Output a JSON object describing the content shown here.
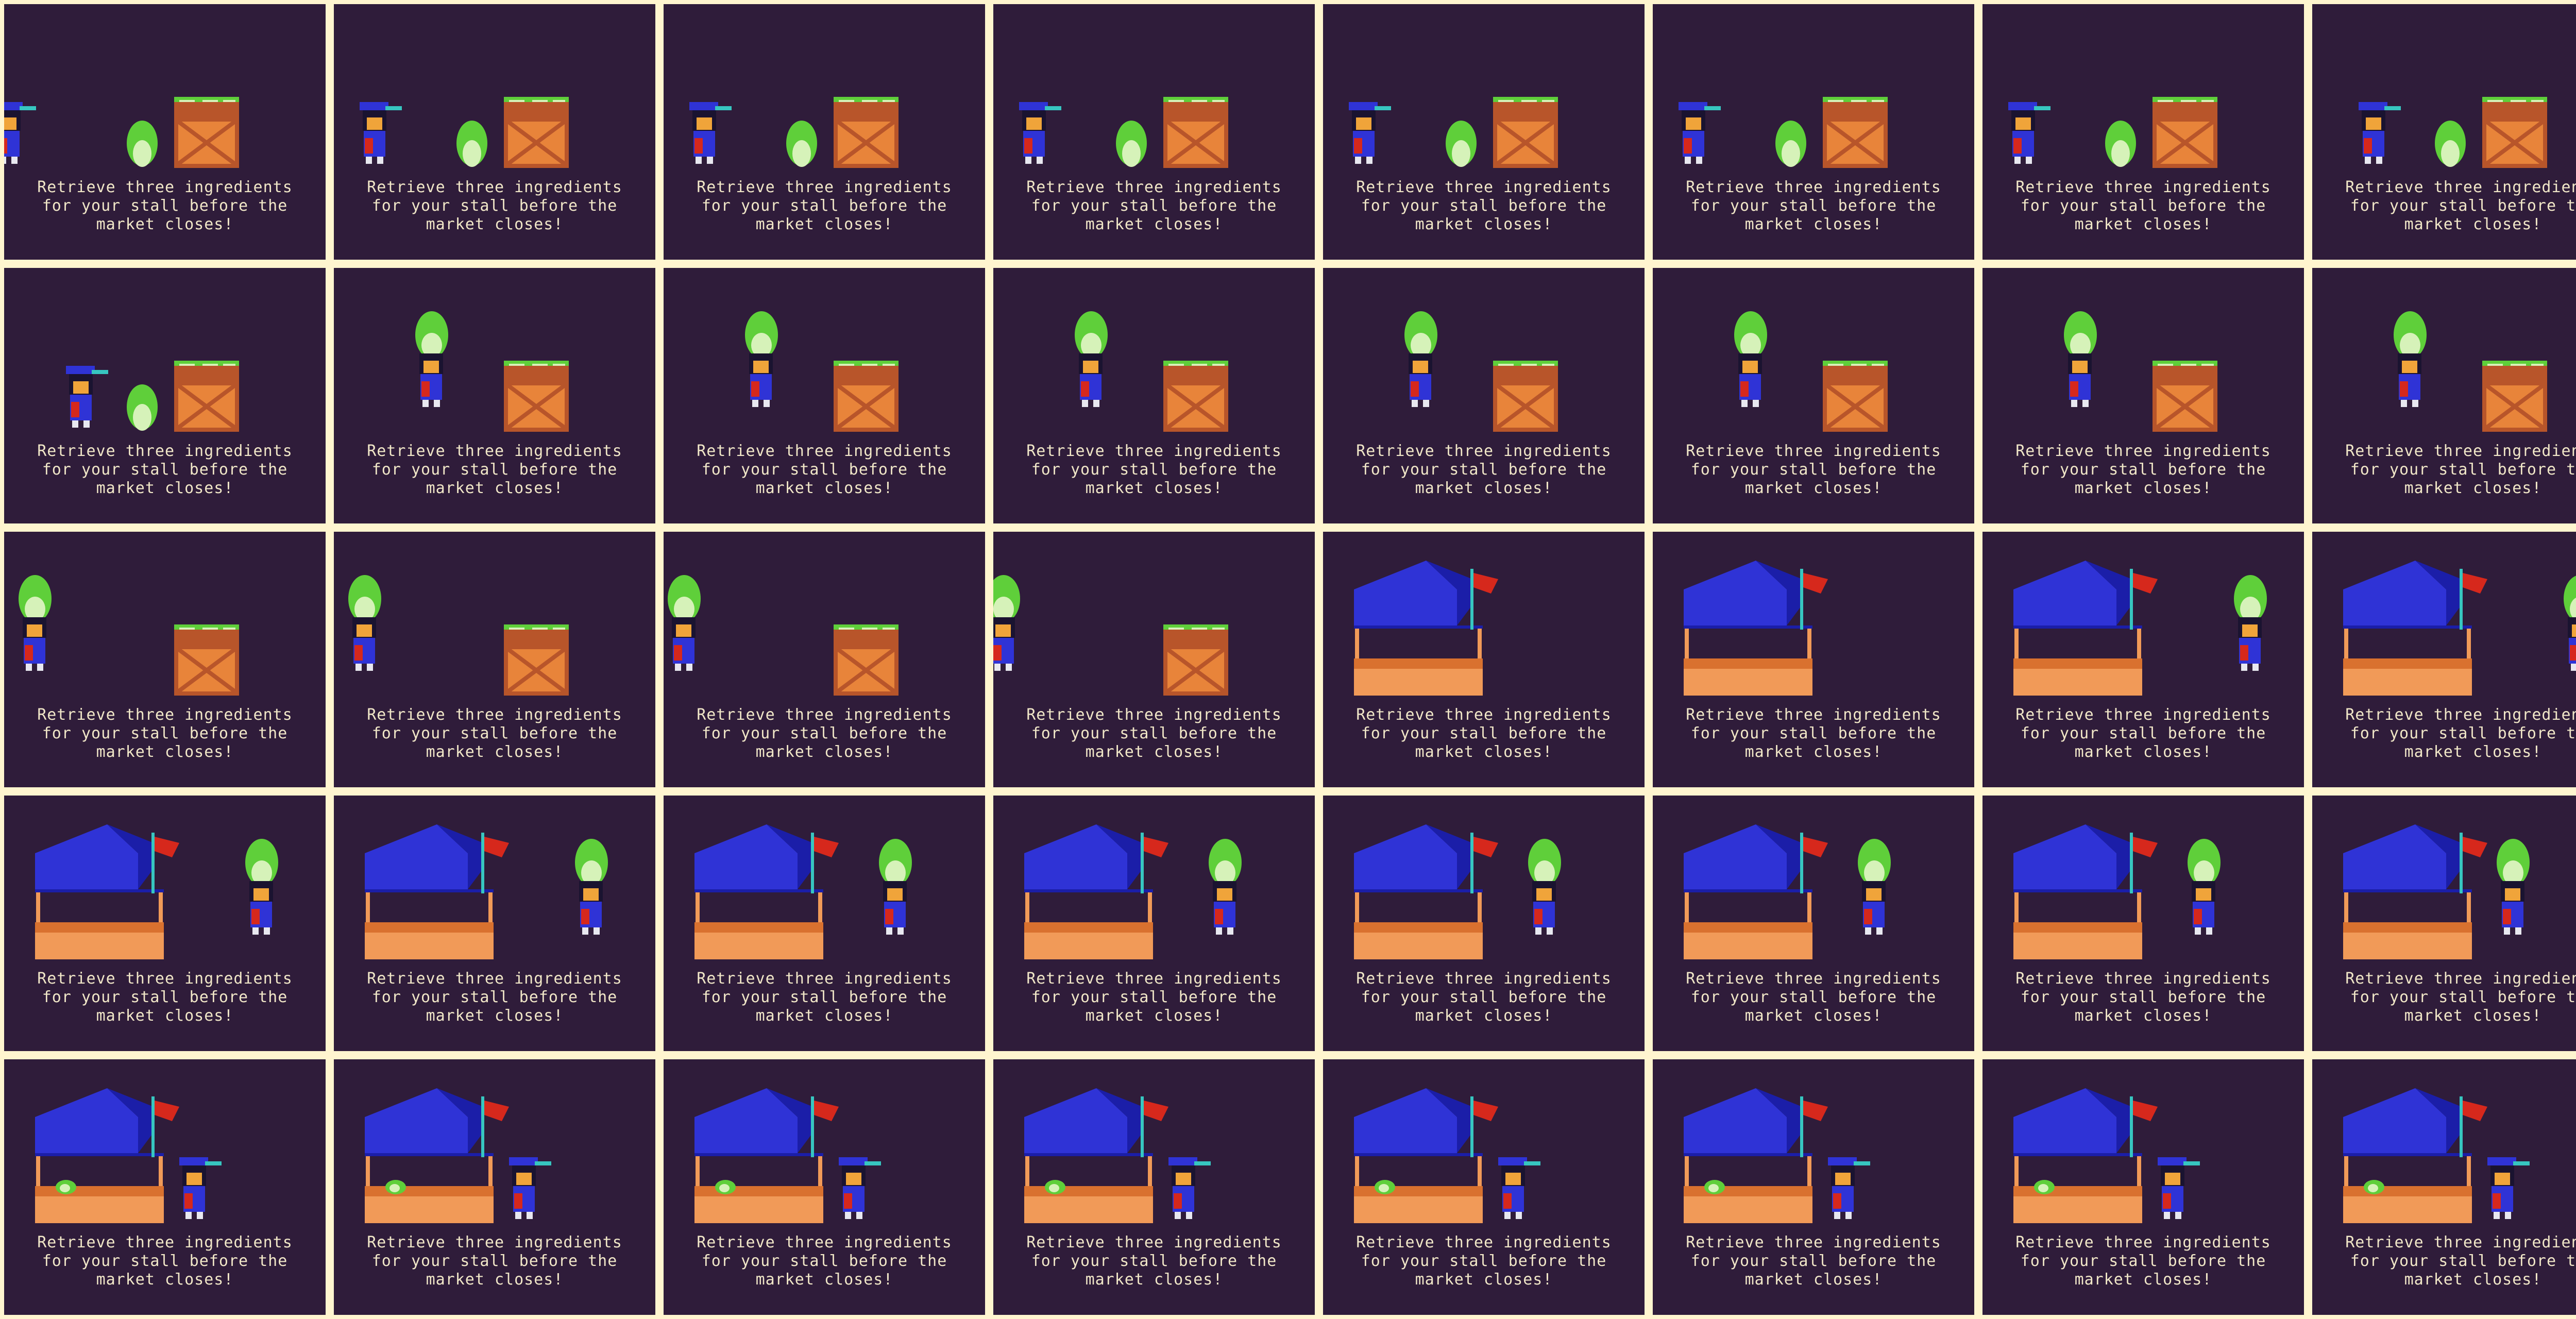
{
  "game": {
    "caption": "Retrieve three ingredients\nfor your stall before the\nmarket closes!",
    "colors": {
      "background": "#2f1c3a",
      "gutter": "#fff5cf",
      "text": "#f1e7c8",
      "crate": "#e8843a",
      "crate_dark": "#b8552a",
      "stall_roof": "#2f33d6",
      "stall_roof_dark": "#1b1ea8",
      "stall_counter": "#f19a58",
      "flag": "#d6281c",
      "flag_pole": "#37c6c0",
      "cabbage": "#5fcf3a",
      "cabbage_light": "#d6f2b9",
      "player_body": "#2f33d6",
      "player_face": "#f0a43a"
    },
    "frames": [
      {
        "scene": "crate",
        "player": "walk-right",
        "carry": false
      },
      {
        "scene": "crate",
        "player": "walk-right",
        "carry": false
      },
      {
        "scene": "crate",
        "player": "walk-right",
        "carry": false
      },
      {
        "scene": "crate",
        "player": "walk-right",
        "carry": false
      },
      {
        "scene": "crate",
        "player": "walk-right",
        "carry": false
      },
      {
        "scene": "crate",
        "player": "walk-right",
        "carry": false
      },
      {
        "scene": "crate",
        "player": "walk-right",
        "carry": false
      },
      {
        "scene": "crate",
        "player": "walk-right",
        "carry": false
      },
      {
        "scene": "crate",
        "player": "pickup",
        "carry": false
      },
      {
        "scene": "crate",
        "player": "lift",
        "carry": true
      },
      {
        "scene": "crate",
        "player": "walk-left",
        "carry": true
      },
      {
        "scene": "crate",
        "player": "walk-left",
        "carry": true
      },
      {
        "scene": "crate",
        "player": "walk-left",
        "carry": true
      },
      {
        "scene": "crate",
        "player": "walk-left",
        "carry": true
      },
      {
        "scene": "crate",
        "player": "walk-left",
        "carry": true
      },
      {
        "scene": "crate",
        "player": "walk-left",
        "carry": true
      },
      {
        "scene": "crate",
        "player": "walk-left",
        "carry": true
      },
      {
        "scene": "crate",
        "player": "walk-left",
        "carry": true
      },
      {
        "scene": "crate",
        "player": "walk-left",
        "carry": true
      },
      {
        "scene": "crate",
        "player": "walk-left",
        "carry": true
      },
      {
        "scene": "stall",
        "player": "none",
        "carry": false
      },
      {
        "scene": "stall",
        "player": "none",
        "carry": false
      },
      {
        "scene": "stall",
        "player": "walk-left",
        "carry": true
      },
      {
        "scene": "stall",
        "player": "walk-left",
        "carry": true
      },
      {
        "scene": "stall",
        "player": "walk-left",
        "carry": true
      },
      {
        "scene": "stall",
        "player": "walk-left",
        "carry": true
      },
      {
        "scene": "stall",
        "player": "walk-left",
        "carry": true
      },
      {
        "scene": "stall",
        "player": "walk-left",
        "carry": true
      },
      {
        "scene": "stall",
        "player": "walk-left",
        "carry": true
      },
      {
        "scene": "stall",
        "player": "walk-left",
        "carry": true
      },
      {
        "scene": "stall",
        "player": "walk-left",
        "carry": true
      },
      {
        "scene": "stall",
        "player": "walk-left",
        "carry": true
      },
      {
        "scene": "stall",
        "player": "deliver",
        "carry": false,
        "stall_item": true
      },
      {
        "scene": "stall",
        "player": "deliver",
        "carry": false,
        "stall_item": true
      },
      {
        "scene": "stall",
        "player": "deliver",
        "carry": false,
        "stall_item": true
      },
      {
        "scene": "stall",
        "player": "deliver",
        "carry": false,
        "stall_item": true
      },
      {
        "scene": "stall",
        "player": "deliver",
        "carry": false,
        "stall_item": true
      },
      {
        "scene": "stall",
        "player": "deliver",
        "carry": false,
        "stall_item": true
      },
      {
        "scene": "stall",
        "player": "deliver",
        "carry": false,
        "stall_item": true
      },
      {
        "scene": "stall",
        "player": "deliver",
        "carry": false,
        "stall_item": true
      }
    ]
  }
}
